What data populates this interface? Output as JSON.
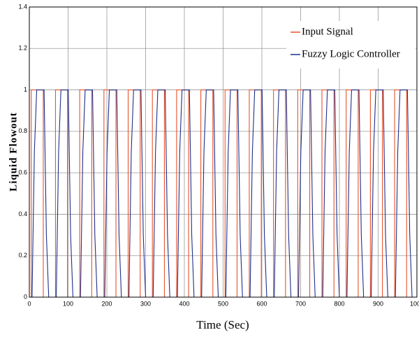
{
  "chart_data": {
    "type": "line",
    "x_label": "Time (Sec)",
    "y_label": "Liquid Flowout",
    "xlim": [
      0,
      1000
    ],
    "xticks": [
      0,
      100,
      200,
      300,
      400,
      500,
      600,
      700,
      800,
      900,
      1000
    ],
    "ylim": [
      0,
      1.4
    ],
    "yticks": [
      0,
      0.2,
      0.4,
      0.6,
      0.8,
      1,
      1.2,
      1.4
    ],
    "grid": true,
    "legend": "upper right",
    "series": [
      {
        "name": "Input Signal",
        "color": "#e8532b",
        "x": [
          0,
          5,
          5,
          36,
          36,
          67.5,
          67.5,
          98.5,
          98.5,
          130,
          130,
          161,
          161,
          192.5,
          192.5,
          223.5,
          223.5,
          255,
          255,
          286,
          286,
          317.5,
          317.5,
          348.5,
          348.5,
          380,
          380,
          411,
          411,
          442.5,
          442.5,
          473.5,
          473.5,
          505,
          505,
          536,
          536,
          567.5,
          567.5,
          598.5,
          598.5,
          630,
          630,
          661,
          661,
          692.5,
          692.5,
          723.5,
          723.5,
          755,
          755,
          786,
          786,
          817.5,
          817.5,
          848.5,
          848.5,
          880,
          880,
          911,
          911,
          942.5,
          942.5,
          973.5,
          973.5,
          1000
        ],
        "values": [
          0,
          0,
          1,
          1,
          0,
          0,
          1,
          1,
          0,
          0,
          1,
          1,
          0,
          0,
          1,
          1,
          0,
          0,
          1,
          1,
          0,
          0,
          1,
          1,
          0,
          0,
          1,
          1,
          0,
          0,
          1,
          1,
          0,
          0,
          1,
          1,
          0,
          0,
          1,
          1,
          0,
          0,
          1,
          1,
          0,
          0,
          1,
          1,
          0,
          0,
          1,
          1,
          0,
          0,
          1,
          1,
          0,
          0,
          1,
          1,
          0,
          0,
          1,
          1,
          0,
          0
        ]
      },
      {
        "name": "Fuzzy Logic Controller",
        "color": "#1f2f8a",
        "x": [
          0,
          7,
          13,
          19,
          38,
          44,
          50,
          69.5,
          75.5,
          81.5,
          100.5,
          106.5,
          112.5,
          132,
          138,
          144,
          163,
          169,
          175,
          194.5,
          200.5,
          206.5,
          225.5,
          231.5,
          237.5,
          257,
          263,
          269,
          288,
          294,
          300,
          319.5,
          325.5,
          331.5,
          350.5,
          356.5,
          362.5,
          382,
          388,
          394,
          413,
          419,
          425,
          444.5,
          450.5,
          456.5,
          475.5,
          481.5,
          487.5,
          507,
          513,
          519,
          538,
          544,
          550,
          569.5,
          575.5,
          581.5,
          600.5,
          606.5,
          612.5,
          632,
          638,
          644,
          663,
          669,
          675,
          694.5,
          700.5,
          706.5,
          725.5,
          731.5,
          737.5,
          757,
          763,
          769,
          788,
          794,
          800,
          819.5,
          825.5,
          831.5,
          850.5,
          856.5,
          862.5,
          882,
          888,
          894,
          913,
          919,
          925,
          944.5,
          950.5,
          956.5,
          975.5,
          981.5,
          987.5,
          1000
        ],
        "values": [
          0,
          0,
          0.7,
          1,
          1,
          0.3,
          0,
          0,
          0.7,
          1,
          1,
          0.3,
          0,
          0,
          0.7,
          1,
          1,
          0.3,
          0,
          0,
          0.7,
          1,
          1,
          0.3,
          0,
          0,
          0.7,
          1,
          1,
          0.3,
          0,
          0,
          0.7,
          1,
          1,
          0.3,
          0,
          0,
          0.7,
          1,
          1,
          0.3,
          0,
          0,
          0.7,
          1,
          1,
          0.3,
          0,
          0,
          0.7,
          1,
          1,
          0.3,
          0,
          0,
          0.7,
          1,
          1,
          0.3,
          0,
          0,
          0.7,
          1,
          1,
          0.3,
          0,
          0,
          0.7,
          1,
          1,
          0.3,
          0,
          0,
          0.7,
          1,
          1,
          0.3,
          0,
          0,
          0.7,
          1,
          1,
          0.3,
          0,
          0,
          0.7,
          1,
          1,
          0.3,
          0,
          0,
          0.7,
          1,
          1,
          0.3,
          0,
          0
        ]
      }
    ]
  }
}
